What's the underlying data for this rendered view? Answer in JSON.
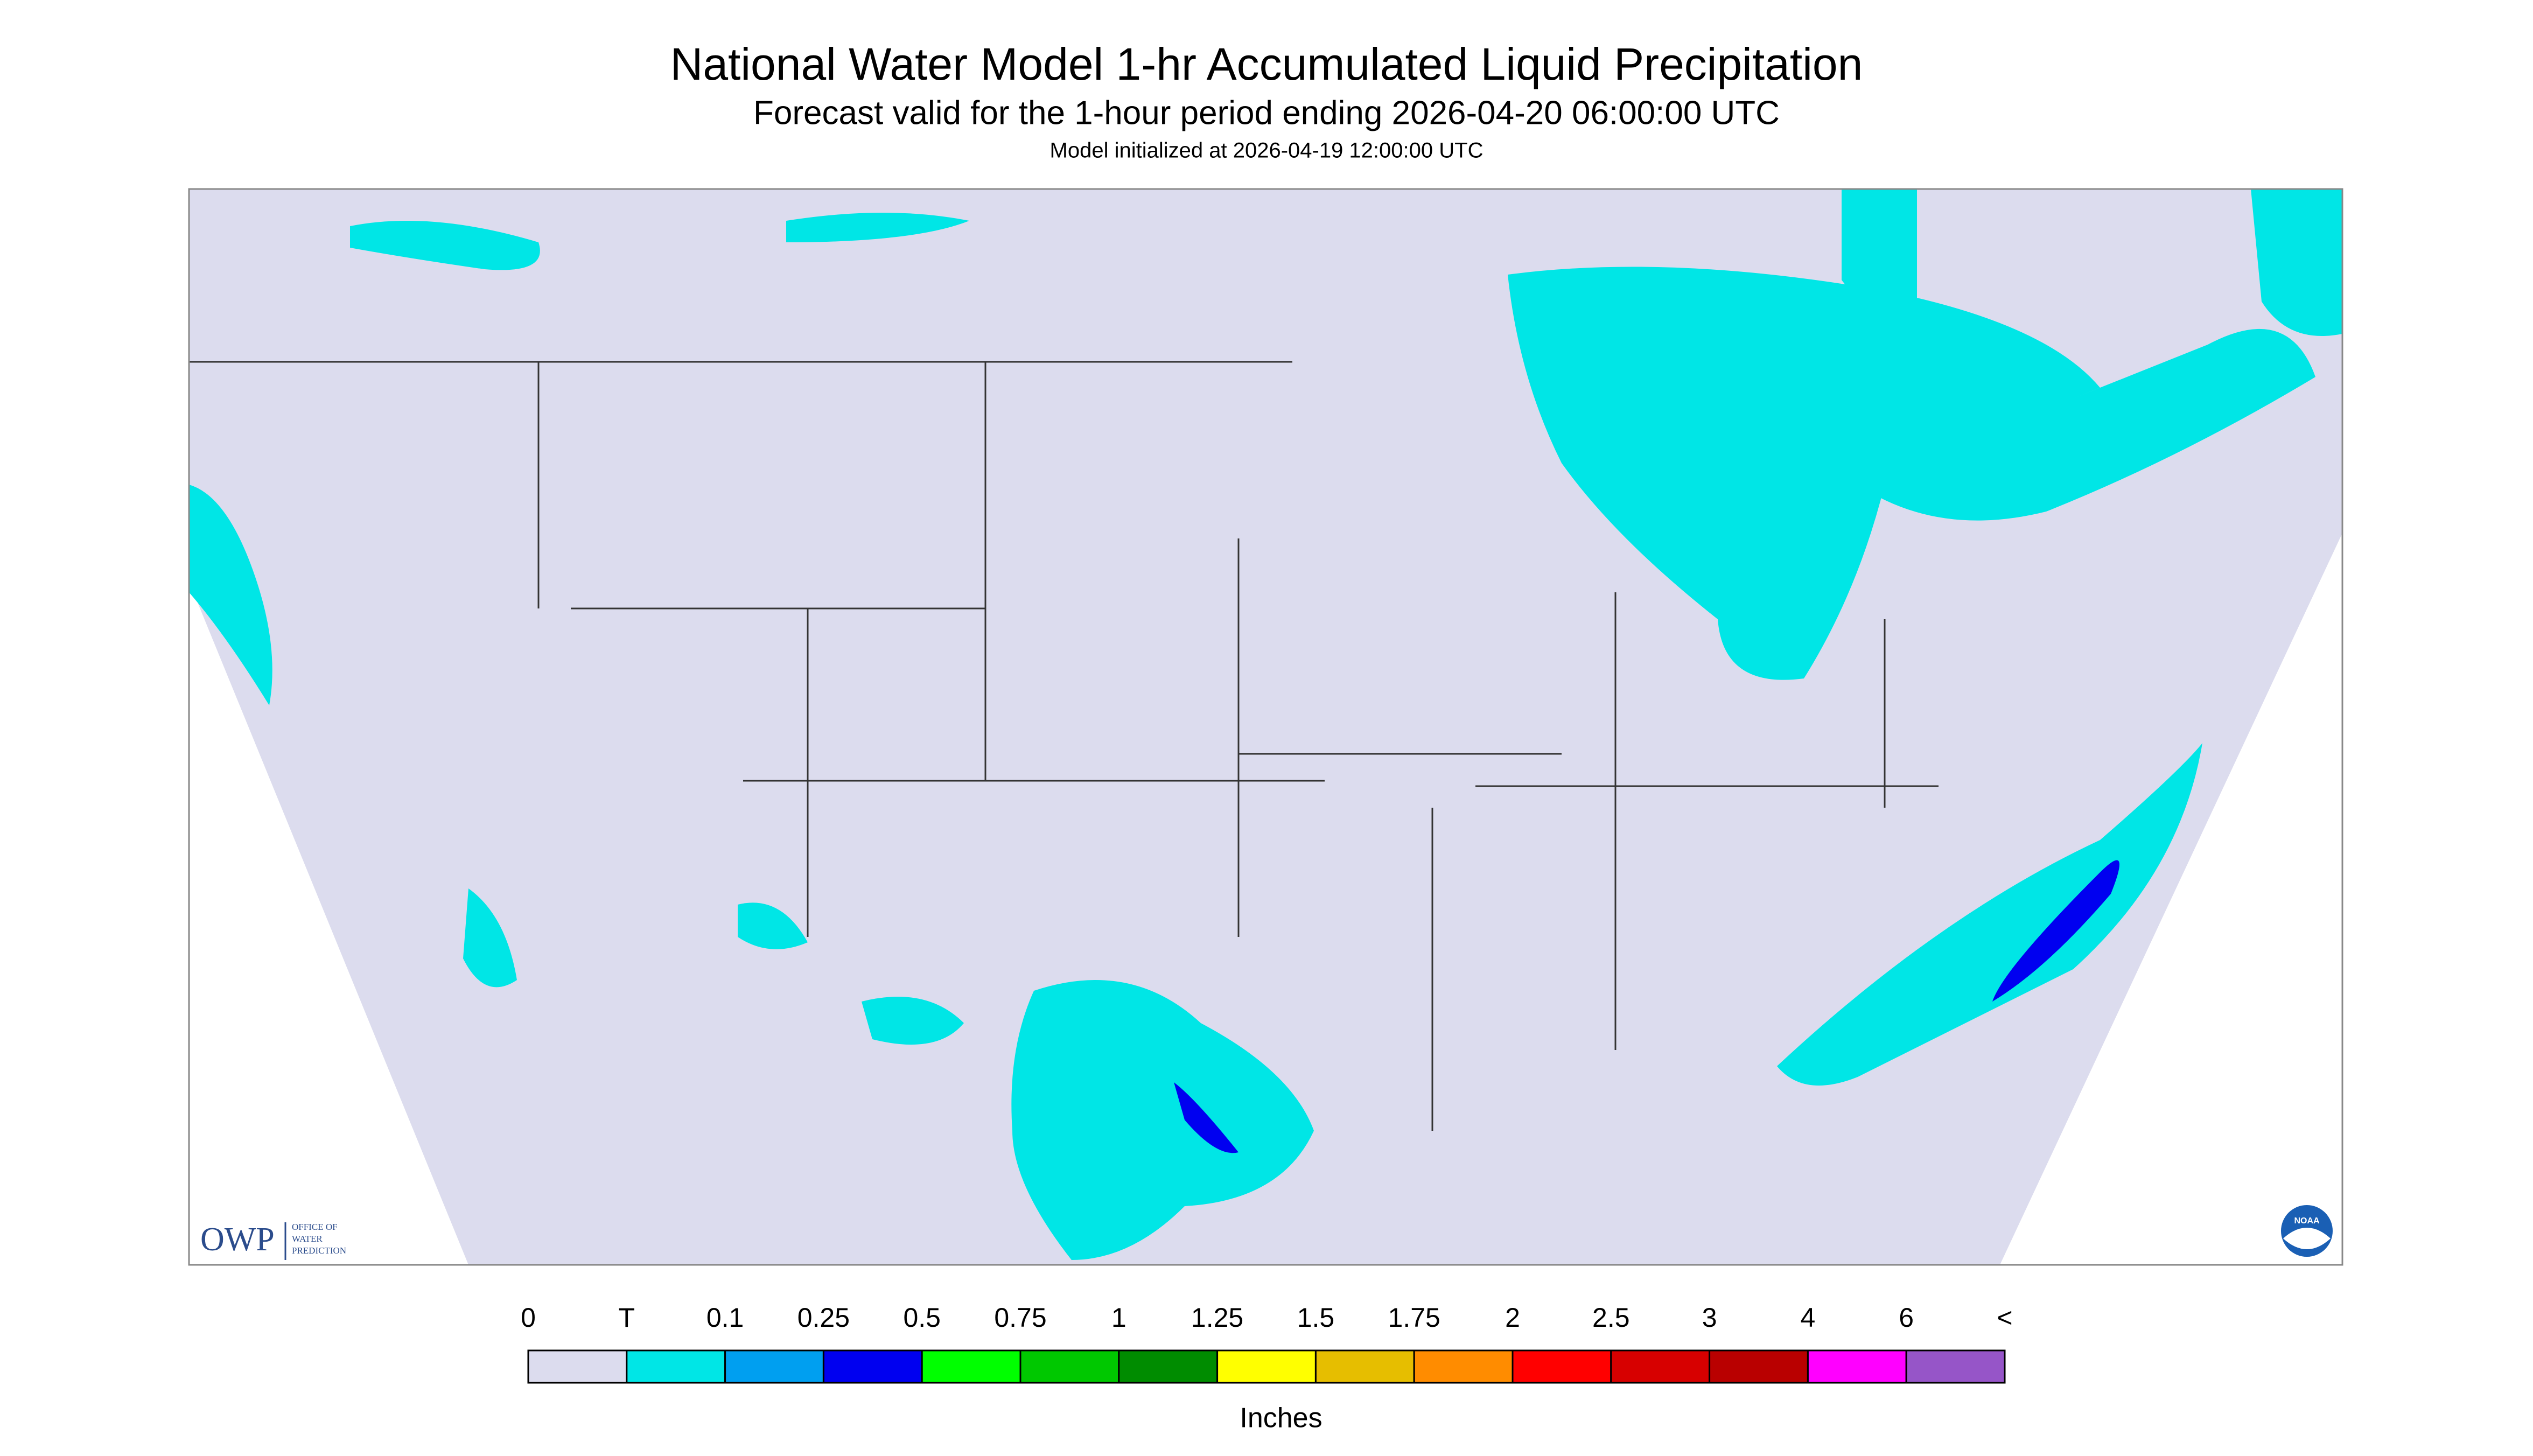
{
  "header": {
    "title": "National Water Model 1-hr Accumulated Liquid Precipitation",
    "subtitle": "Forecast valid for the 1-hour period ending 2026-04-20 06:00:00 UTC",
    "initialized": "Model initialized at 2026-04-19 12:00:00 UTC"
  },
  "logo": {
    "name": "OWP",
    "lines": [
      "OFFICE OF",
      "WATER",
      "PREDICTION"
    ],
    "badge": "NOAA"
  },
  "legend": {
    "labels": [
      "0",
      "T",
      "0.1",
      "0.25",
      "0.5",
      "0.75",
      "1",
      "1.25",
      "1.5",
      "1.75",
      "2",
      "2.5",
      "3",
      "4",
      "6",
      "<"
    ],
    "colors": [
      "#dcdcee",
      "#00e6e6",
      "#009ff0",
      "#0000f0",
      "#00ff00",
      "#00c800",
      "#008c00",
      "#ffff00",
      "#e6be00",
      "#ff8c00",
      "#ff0000",
      "#d70000",
      "#b90000",
      "#ff00ff",
      "#9655c8"
    ],
    "unit": "Inches"
  }
}
